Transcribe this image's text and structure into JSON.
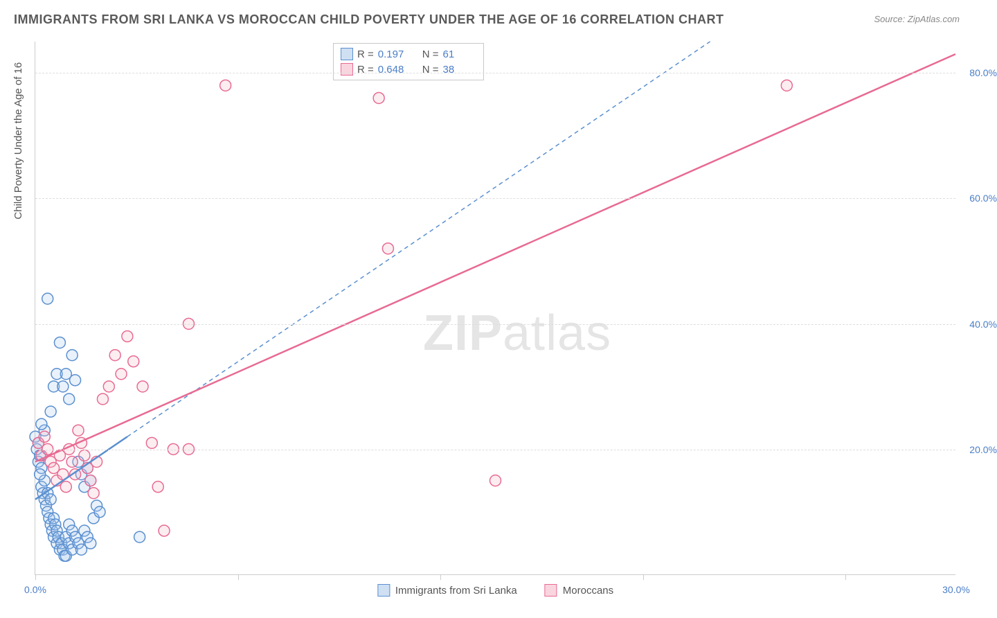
{
  "title": "IMMIGRANTS FROM SRI LANKA VS MOROCCAN CHILD POVERTY UNDER THE AGE OF 16 CORRELATION CHART",
  "source": "Source: ZipAtlas.com",
  "watermark_a": "ZIP",
  "watermark_b": "atlas",
  "ylabel": "Child Poverty Under the Age of 16",
  "chart": {
    "type": "scatter",
    "xlim": [
      0,
      30
    ],
    "ylim": [
      0,
      85
    ],
    "yticks": [
      20,
      40,
      60,
      80
    ],
    "ytick_labels": [
      "20.0%",
      "40.0%",
      "60.0%",
      "80.0%"
    ],
    "xticks": [
      0,
      6.6,
      13.2,
      19.8,
      26.4
    ],
    "xtick_labels_visible": {
      "0": "0.0%",
      "30": "30.0%"
    },
    "background_color": "#ffffff",
    "grid_color": "#dddddd",
    "axis_color": "#cccccc",
    "tick_label_color": "#4a7ec7",
    "label_color": "#555555",
    "title_color": "#5a5a5a",
    "title_fontsize": 18,
    "label_fontsize": 15,
    "tick_fontsize": 14,
    "marker_radius": 8,
    "marker_stroke_width": 1.5,
    "marker_fill_opacity": 0.25,
    "series": [
      {
        "name": "Immigrants from Sri Lanka",
        "color_stroke": "#5a8fd0",
        "color_fill": "#a9c8ea",
        "R": 0.197,
        "N": 61,
        "trend_solid": {
          "x1": 0,
          "y1": 12,
          "x2": 3.0,
          "y2": 22,
          "width": 2.5
        },
        "trend_dash": {
          "x1": 3.0,
          "y1": 22,
          "x2": 22,
          "y2": 85,
          "dash": "6,5",
          "width": 1.5
        },
        "points": [
          [
            0.0,
            22
          ],
          [
            0.05,
            20
          ],
          [
            0.1,
            18
          ],
          [
            0.1,
            21
          ],
          [
            0.15,
            19
          ],
          [
            0.2,
            17
          ],
          [
            0.2,
            14
          ],
          [
            0.25,
            13
          ],
          [
            0.3,
            12
          ],
          [
            0.3,
            15
          ],
          [
            0.35,
            11
          ],
          [
            0.4,
            10
          ],
          [
            0.4,
            13
          ],
          [
            0.45,
            9
          ],
          [
            0.5,
            8
          ],
          [
            0.5,
            12
          ],
          [
            0.55,
            7
          ],
          [
            0.6,
            9
          ],
          [
            0.6,
            6
          ],
          [
            0.65,
            8
          ],
          [
            0.7,
            7
          ],
          [
            0.7,
            5
          ],
          [
            0.75,
            6
          ],
          [
            0.8,
            4
          ],
          [
            0.85,
            5
          ],
          [
            0.9,
            4
          ],
          [
            0.95,
            3
          ],
          [
            1.0,
            6
          ],
          [
            1.0,
            3
          ],
          [
            1.1,
            8
          ],
          [
            1.1,
            5
          ],
          [
            1.2,
            7
          ],
          [
            1.2,
            4
          ],
          [
            1.3,
            6
          ],
          [
            1.4,
            5
          ],
          [
            1.5,
            4
          ],
          [
            1.6,
            7
          ],
          [
            1.7,
            6
          ],
          [
            1.8,
            5
          ],
          [
            0.3,
            23
          ],
          [
            0.5,
            26
          ],
          [
            0.6,
            30
          ],
          [
            0.7,
            32
          ],
          [
            0.8,
            37
          ],
          [
            0.9,
            30
          ],
          [
            1.0,
            32
          ],
          [
            1.1,
            28
          ],
          [
            1.2,
            35
          ],
          [
            1.3,
            31
          ],
          [
            1.4,
            18
          ],
          [
            1.5,
            16
          ],
          [
            1.6,
            14
          ],
          [
            1.7,
            17
          ],
          [
            1.8,
            15
          ],
          [
            1.9,
            9
          ],
          [
            2.0,
            11
          ],
          [
            2.1,
            10
          ],
          [
            0.4,
            44
          ],
          [
            0.2,
            24
          ],
          [
            0.15,
            16
          ],
          [
            3.4,
            6
          ]
        ]
      },
      {
        "name": "Moroccans",
        "color_stroke": "#e86a92",
        "color_fill": "#f5b7c9",
        "R": 0.648,
        "N": 38,
        "trend_solid": {
          "x1": 0,
          "y1": 18,
          "x2": 30,
          "y2": 83,
          "width": 2.5
        },
        "points": [
          [
            0.1,
            21
          ],
          [
            0.2,
            19
          ],
          [
            0.3,
            22
          ],
          [
            0.4,
            20
          ],
          [
            0.5,
            18
          ],
          [
            0.6,
            17
          ],
          [
            0.7,
            15
          ],
          [
            0.8,
            19
          ],
          [
            0.9,
            16
          ],
          [
            1.0,
            14
          ],
          [
            1.1,
            20
          ],
          [
            1.2,
            18
          ],
          [
            1.3,
            16
          ],
          [
            1.4,
            23
          ],
          [
            1.5,
            21
          ],
          [
            1.6,
            19
          ],
          [
            1.7,
            17
          ],
          [
            1.8,
            15
          ],
          [
            1.9,
            13
          ],
          [
            2.0,
            18
          ],
          [
            2.2,
            28
          ],
          [
            2.4,
            30
          ],
          [
            2.6,
            35
          ],
          [
            2.8,
            32
          ],
          [
            3.0,
            38
          ],
          [
            3.2,
            34
          ],
          [
            3.5,
            30
          ],
          [
            3.8,
            21
          ],
          [
            4.0,
            14
          ],
          [
            4.2,
            7
          ],
          [
            4.5,
            20
          ],
          [
            5.0,
            20
          ],
          [
            5.0,
            40
          ],
          [
            6.2,
            78
          ],
          [
            11.2,
            76
          ],
          [
            11.5,
            52
          ],
          [
            15.0,
            15
          ],
          [
            24.5,
            78
          ]
        ]
      }
    ]
  },
  "top_legend": {
    "rows": [
      {
        "swatch_fill": "#cfe0f3",
        "swatch_stroke": "#5a8fd0",
        "r_label": "R =",
        "r_val": "0.197",
        "n_label": "N =",
        "n_val": "61"
      },
      {
        "swatch_fill": "#f9d5e0",
        "swatch_stroke": "#e86a92",
        "r_label": "R =",
        "r_val": "0.648",
        "n_label": "N =",
        "n_val": "38"
      }
    ]
  },
  "bottom_legend": {
    "items": [
      {
        "swatch_fill": "#cfe0f3",
        "swatch_stroke": "#5a8fd0",
        "label": "Immigrants from Sri Lanka"
      },
      {
        "swatch_fill": "#f9d5e0",
        "swatch_stroke": "#e86a92",
        "label": "Moroccans"
      }
    ]
  }
}
